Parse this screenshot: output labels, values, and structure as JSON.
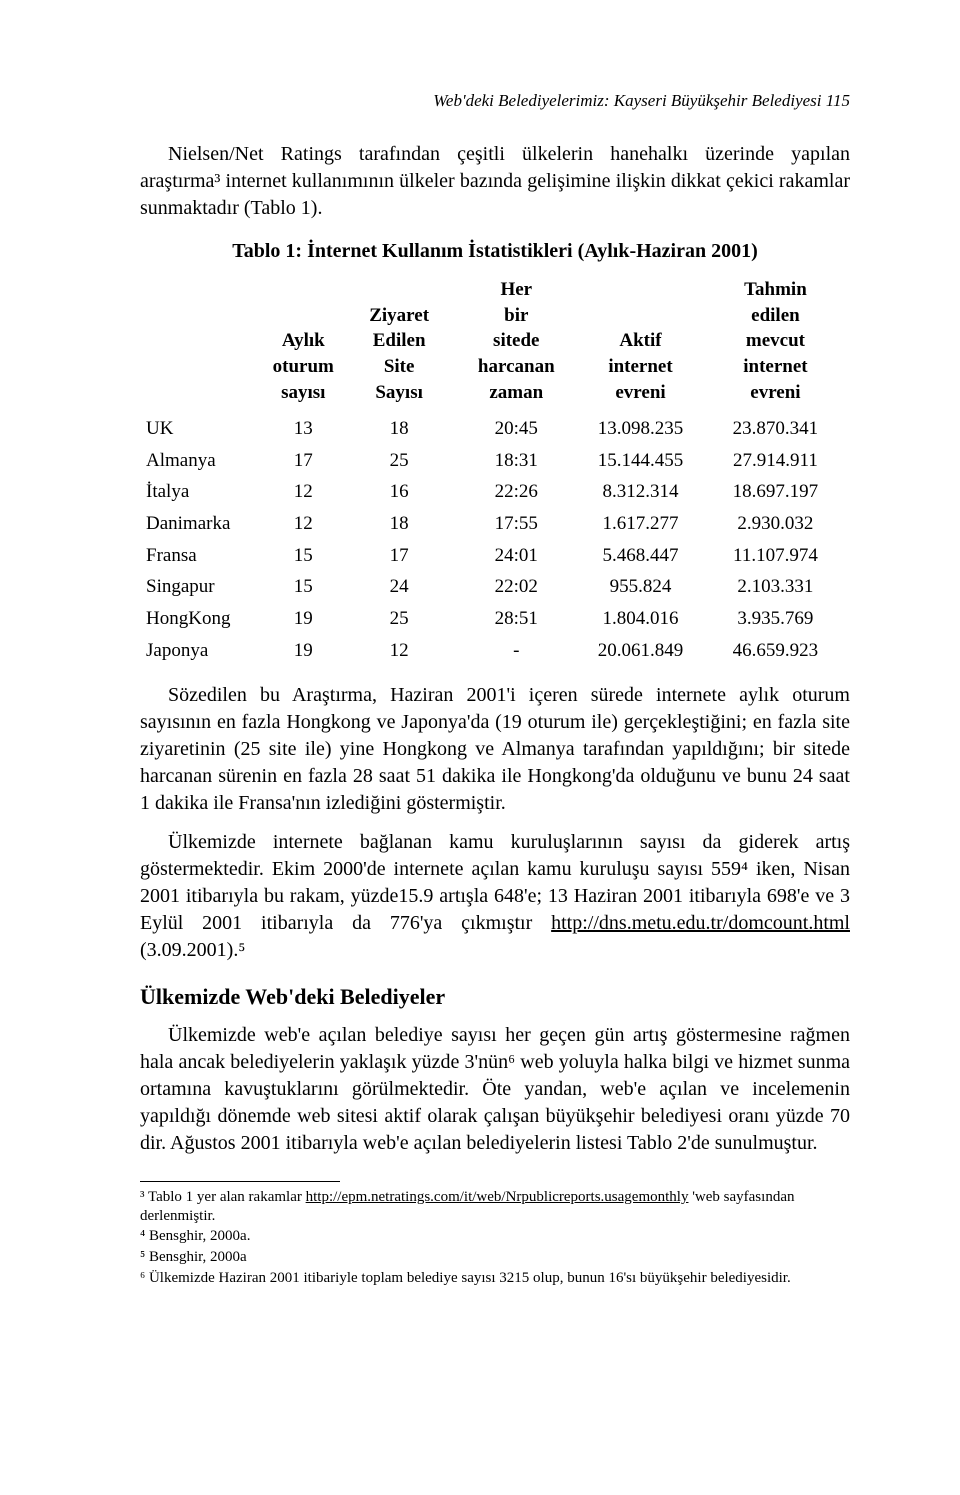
{
  "running_head": "Web'deki Belediyelerimiz: Kayseri Büyükşehir Belediyesi  115",
  "intro_para": "Nielsen/Net Ratings tarafından çeşitli ülkelerin hanehalkı üzerinde yapılan araştırma³ internet kullanımının ülkeler bazında gelişimine ilişkin dikkat çekici rakamlar sunmaktadır (Tablo 1).",
  "table": {
    "title": "Tablo 1: İnternet Kullanım İstatistikleri (Aylık-Haziran 2001)",
    "columns": [
      "",
      "Aylık oturum sayısı",
      "Ziyaret Edilen Site Sayısı",
      "Her bir sitede harcanan zaman",
      "Aktif internet evreni",
      "Tahmin edilen mevcut internet evreni"
    ],
    "col_widths": [
      "17%",
      "12%",
      "15%",
      "18%",
      "17%",
      "21%"
    ],
    "rows": [
      [
        "UK",
        "13",
        "18",
        "20:45",
        "13.098.235",
        "23.870.341"
      ],
      [
        "Almanya",
        "17",
        "25",
        "18:31",
        "15.144.455",
        "27.914.911"
      ],
      [
        "İtalya",
        "12",
        "16",
        "22:26",
        "8.312.314",
        "18.697.197"
      ],
      [
        "Danimarka",
        "12",
        "18",
        "17:55",
        "1.617.277",
        "2.930.032"
      ],
      [
        "Fransa",
        "15",
        "17",
        "24:01",
        "5.468.447",
        "11.107.974"
      ],
      [
        "Singapur",
        "15",
        "24",
        "22:02",
        "955.824",
        "2.103.331"
      ],
      [
        "HongKong",
        "19",
        "25",
        "28:51",
        "1.804.016",
        "3.935.769"
      ],
      [
        "Japonya",
        "19",
        "12",
        "-",
        "20.061.849",
        "46.659.923"
      ]
    ]
  },
  "after_table_para1": "Sözedilen bu Araştırma, Haziran 2001'i içeren sürede internete aylık oturum sayısının en fazla Hongkong ve Japonya'da (19 oturum ile) gerçekleştiğini; en fazla site ziyaretinin (25 site ile) yine Hongkong ve Almanya tarafından yapıldığını; bir sitede harcanan sürenin en fazla 28 saat 51 dakika ile Hongkong'da olduğunu ve bunu 24 saat 1 dakika ile Fransa'nın izlediğini göstermiştir.",
  "after_table_para2_pre": "Ülkemizde internete bağlanan kamu kuruluşlarının sayısı da giderek artış göstermektedir. Ekim 2000'de internete açılan kamu kuruluşu sayısı 559⁴ iken, Nisan 2001 itibarıyla bu rakam, yüzde15.9 artışla 648'e; 13 Haziran 2001 itibarıyla 698'e ve 3 Eylül 2001 itibarıyla da 776'ya çıkmıştır ",
  "after_table_para2_link": "http://dns.metu.edu.tr/domcount.html",
  "after_table_para2_post": " (3.09.2001).⁵",
  "section_heading": "Ülkemizde Web'deki Belediyeler",
  "section_para": "Ülkemizde web'e açılan belediye sayısı her geçen gün artış göstermesine rağmen hala ancak belediyelerin yaklaşık yüzde 3'nün⁶ web yoluyla halka bilgi ve hizmet sunma ortamına kavuştuklarını görülmektedir. Öte yandan, web'e açılan ve incelemenin yapıldığı dönemde web sitesi aktif olarak çalışan büyükşehir belediyesi oranı yüzde 70 dir. Ağustos 2001 itibarıyla web'e açılan belediyelerin listesi Tablo 2'de sunulmuştur.",
  "footnotes": {
    "fn3_pre": "³ Tablo 1 yer alan rakamlar ",
    "fn3_link": "http://epm.netratings.com/it/web/Nrpublicreports.usagemonthly",
    "fn3_post": " 'web sayfasından derlenmiştir.",
    "fn4": "⁴ Bensghir, 2000a.",
    "fn5": "⁵ Bensghir, 2000a",
    "fn6": "⁶ Ülkemizde Haziran 2001 itibariyle toplam belediye sayısı 3215 olup, bunun 16'sı büyükşehir belediyesidir."
  }
}
